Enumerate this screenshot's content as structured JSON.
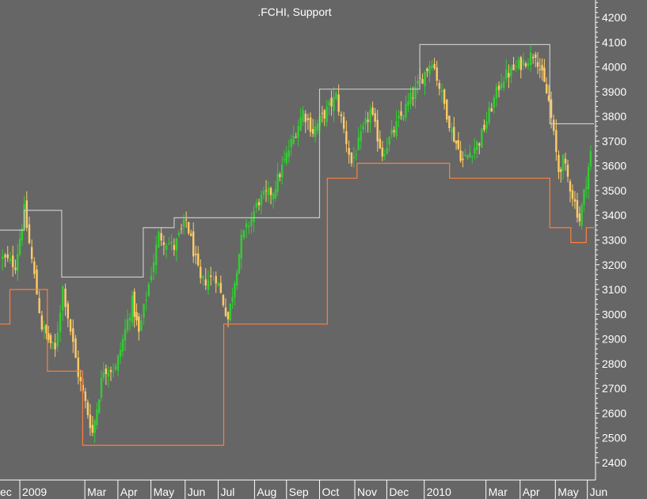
{
  "chart_data": {
    "type": "candlestick",
    "title": ".FCHI, Support",
    "background": "#666666",
    "colors": {
      "up_candle": "#33cc33",
      "down_candle": "#ffcc66",
      "resistance_line": "#c8c8c8",
      "support_line": "#ff7f3f",
      "axis": "#ffffff",
      "text": "#ffffff"
    },
    "y_axis": {
      "position": "right",
      "range": [
        2350,
        4250
      ],
      "ticks": [
        2400,
        2500,
        2600,
        2700,
        2800,
        2900,
        3000,
        3100,
        3200,
        3300,
        3400,
        3500,
        3600,
        3700,
        3800,
        3900,
        4000,
        4100,
        4200
      ]
    },
    "x_axis": {
      "range": [
        "2008-12-15",
        "2010-06-07"
      ],
      "labels": [
        {
          "date": "2008-12-15",
          "text": "ec"
        },
        {
          "date": "2009-01-02",
          "text": "2009"
        },
        {
          "date": "2009-03-02",
          "text": "Mar"
        },
        {
          "date": "2009-04-01",
          "text": "Apr"
        },
        {
          "date": "2009-05-01",
          "text": "May"
        },
        {
          "date": "2009-06-01",
          "text": "Jun"
        },
        {
          "date": "2009-07-01",
          "text": "Jul"
        },
        {
          "date": "2009-08-03",
          "text": "Aug"
        },
        {
          "date": "2009-09-01",
          "text": "Sep"
        },
        {
          "date": "2009-10-01",
          "text": "Oct"
        },
        {
          "date": "2009-11-02",
          "text": "Nov"
        },
        {
          "date": "2009-12-01",
          "text": "Dec"
        },
        {
          "date": "2010-01-04",
          "text": "2010"
        },
        {
          "date": "2010-03-01",
          "text": "Mar"
        },
        {
          "date": "2010-04-01",
          "text": "Apr"
        },
        {
          "date": "2010-05-03",
          "text": "May"
        },
        {
          "date": "2010-06-01",
          "text": "Jun"
        }
      ]
    },
    "price_path": [
      {
        "date": "2008-12-15",
        "close": 3230
      },
      {
        "date": "2008-12-29",
        "close": 3200
      },
      {
        "date": "2009-01-06",
        "close": 3420
      },
      {
        "date": "2009-01-22",
        "close": 2950
      },
      {
        "date": "2009-02-03",
        "close": 2850
      },
      {
        "date": "2009-02-10",
        "close": 3110
      },
      {
        "date": "2009-02-24",
        "close": 2760
      },
      {
        "date": "2009-03-09",
        "close": 2520
      },
      {
        "date": "2009-03-19",
        "close": 2780
      },
      {
        "date": "2009-03-30",
        "close": 2780
      },
      {
        "date": "2009-04-14",
        "close": 3050
      },
      {
        "date": "2009-04-20",
        "close": 2920
      },
      {
        "date": "2009-05-08",
        "close": 3320
      },
      {
        "date": "2009-05-22",
        "close": 3270
      },
      {
        "date": "2009-06-02",
        "close": 3380
      },
      {
        "date": "2009-06-15",
        "close": 3130
      },
      {
        "date": "2009-06-29",
        "close": 3150
      },
      {
        "date": "2009-07-10",
        "close": 2980
      },
      {
        "date": "2009-07-22",
        "close": 3300
      },
      {
        "date": "2009-08-07",
        "close": 3460
      },
      {
        "date": "2009-08-20",
        "close": 3500
      },
      {
        "date": "2009-09-01",
        "close": 3640
      },
      {
        "date": "2009-09-16",
        "close": 3820
      },
      {
        "date": "2009-09-25",
        "close": 3740
      },
      {
        "date": "2009-10-16",
        "close": 3880
      },
      {
        "date": "2009-10-30",
        "close": 3610
      },
      {
        "date": "2009-11-16",
        "close": 3820
      },
      {
        "date": "2009-11-27",
        "close": 3650
      },
      {
        "date": "2009-12-14",
        "close": 3800
      },
      {
        "date": "2010-01-11",
        "close": 4030
      },
      {
        "date": "2010-01-29",
        "close": 3740
      },
      {
        "date": "2010-02-08",
        "close": 3620
      },
      {
        "date": "2010-02-23",
        "close": 3700
      },
      {
        "date": "2010-03-15",
        "close": 3950
      },
      {
        "date": "2010-04-15",
        "close": 4060
      },
      {
        "date": "2010-04-27",
        "close": 3860
      },
      {
        "date": "2010-05-06",
        "close": 3580
      },
      {
        "date": "2010-05-10",
        "close": 3620
      },
      {
        "date": "2010-05-25",
        "close": 3380
      },
      {
        "date": "2010-06-04",
        "close": 3650
      }
    ],
    "resistance_line": [
      {
        "date": "2008-12-15",
        "value": 3340
      },
      {
        "date": "2009-01-06",
        "value": 3340
      },
      {
        "date": "2009-01-06",
        "value": 3420
      },
      {
        "date": "2009-02-09",
        "value": 3420
      },
      {
        "date": "2009-02-09",
        "value": 3150
      },
      {
        "date": "2009-04-24",
        "value": 3150
      },
      {
        "date": "2009-04-24",
        "value": 3350
      },
      {
        "date": "2009-05-22",
        "value": 3350
      },
      {
        "date": "2009-05-22",
        "value": 3390
      },
      {
        "date": "2009-10-01",
        "value": 3390
      },
      {
        "date": "2009-10-01",
        "value": 3910
      },
      {
        "date": "2009-12-31",
        "value": 3910
      },
      {
        "date": "2009-12-31",
        "value": 4090
      },
      {
        "date": "2010-04-28",
        "value": 4090
      },
      {
        "date": "2010-04-28",
        "value": 3770
      },
      {
        "date": "2010-06-07",
        "value": 3770
      }
    ],
    "support_line": [
      {
        "date": "2008-12-15",
        "value": 2960
      },
      {
        "date": "2008-12-24",
        "value": 2960
      },
      {
        "date": "2008-12-24",
        "value": 3100
      },
      {
        "date": "2009-01-27",
        "value": 3100
      },
      {
        "date": "2009-01-27",
        "value": 2770
      },
      {
        "date": "2009-02-28",
        "value": 2770
      },
      {
        "date": "2009-02-28",
        "value": 2470
      },
      {
        "date": "2009-07-06",
        "value": 2470
      },
      {
        "date": "2009-07-06",
        "value": 2960
      },
      {
        "date": "2009-10-08",
        "value": 2960
      },
      {
        "date": "2009-10-08",
        "value": 3550
      },
      {
        "date": "2009-11-04",
        "value": 3550
      },
      {
        "date": "2009-11-04",
        "value": 3610
      },
      {
        "date": "2010-01-27",
        "value": 3610
      },
      {
        "date": "2010-01-27",
        "value": 3550
      },
      {
        "date": "2010-04-28",
        "value": 3550
      },
      {
        "date": "2010-04-28",
        "value": 3350
      },
      {
        "date": "2010-05-17",
        "value": 3350
      },
      {
        "date": "2010-05-17",
        "value": 3290
      },
      {
        "date": "2010-05-31",
        "value": 3290
      },
      {
        "date": "2010-05-31",
        "value": 3350
      },
      {
        "date": "2010-06-07",
        "value": 3350
      }
    ]
  }
}
